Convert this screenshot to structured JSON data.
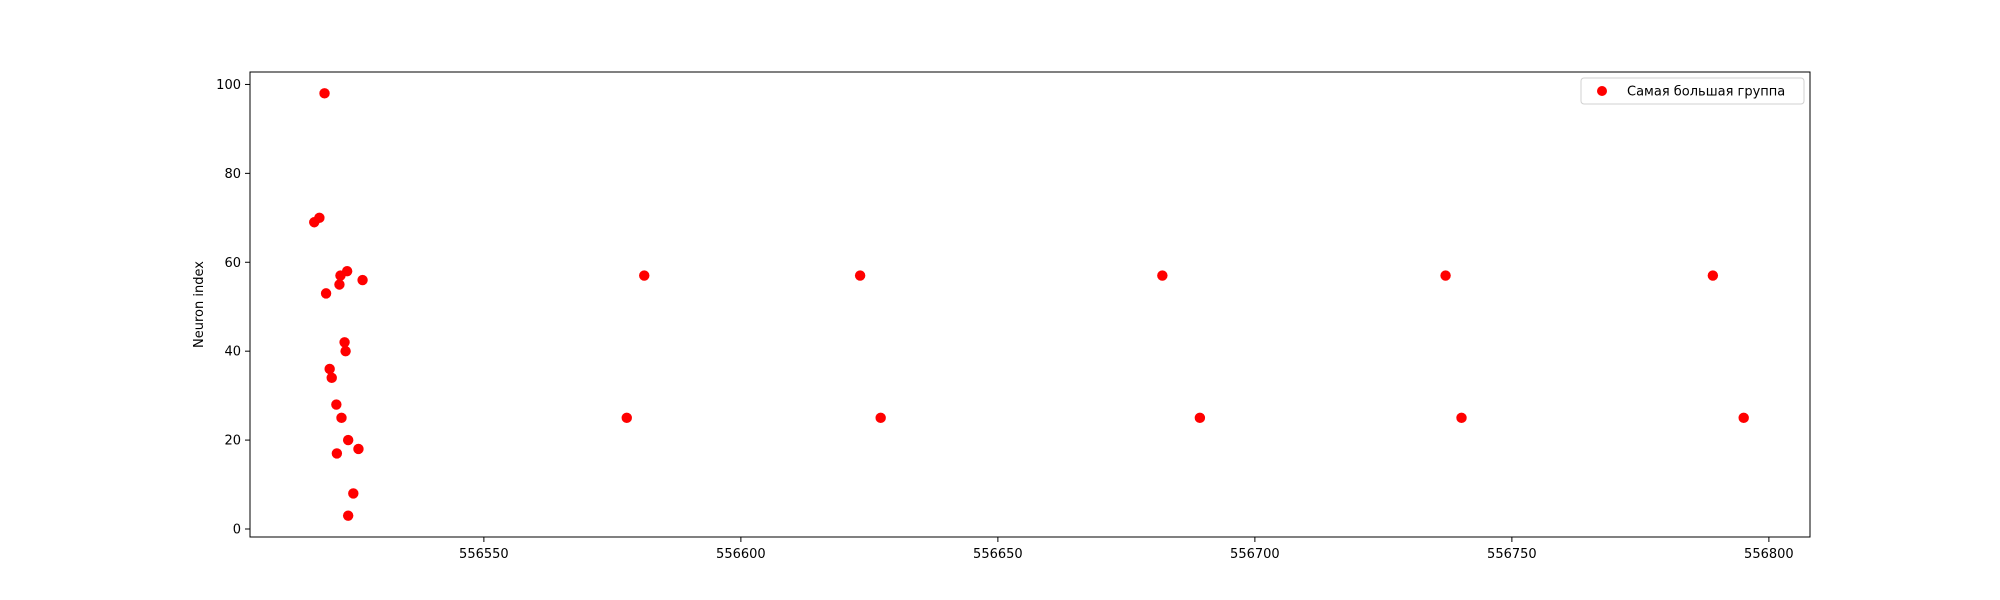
{
  "chart_data": {
    "type": "scatter",
    "title": "",
    "xlabel": "",
    "ylabel": "Neuron index",
    "xlim": [
      556504.5,
      556808
    ],
    "ylim": [
      -1.8,
      102.8
    ],
    "x_ticks": [
      556550,
      556600,
      556650,
      556700,
      556750,
      556800
    ],
    "x_tick_labels": [
      "556550",
      "556600",
      "556650",
      "556700",
      "556750",
      "556800"
    ],
    "y_ticks": [
      0,
      20,
      40,
      60,
      80,
      100
    ],
    "y_tick_labels": [
      "0",
      "20",
      "40",
      "60",
      "80",
      "100"
    ],
    "grid": false,
    "legend_position": "top-right",
    "series": [
      {
        "name": "Самая большая группа",
        "color": "#ff0000",
        "marker": "circle",
        "points": [
          {
            "x": 556519.0,
            "y": 98
          },
          {
            "x": 556517.0,
            "y": 69
          },
          {
            "x": 556518.0,
            "y": 70
          },
          {
            "x": 556519.3,
            "y": 53
          },
          {
            "x": 556522.1,
            "y": 57
          },
          {
            "x": 556523.4,
            "y": 58
          },
          {
            "x": 556521.9,
            "y": 55
          },
          {
            "x": 556526.4,
            "y": 56
          },
          {
            "x": 556522.9,
            "y": 42
          },
          {
            "x": 556523.1,
            "y": 40
          },
          {
            "x": 556520.0,
            "y": 36
          },
          {
            "x": 556520.4,
            "y": 34
          },
          {
            "x": 556521.3,
            "y": 28
          },
          {
            "x": 556522.3,
            "y": 25
          },
          {
            "x": 556523.6,
            "y": 20
          },
          {
            "x": 556521.4,
            "y": 17
          },
          {
            "x": 556525.6,
            "y": 18
          },
          {
            "x": 556524.6,
            "y": 8
          },
          {
            "x": 556523.6,
            "y": 3
          },
          {
            "x": 556581.2,
            "y": 57
          },
          {
            "x": 556577.8,
            "y": 25
          },
          {
            "x": 556623.2,
            "y": 57
          },
          {
            "x": 556627.2,
            "y": 25
          },
          {
            "x": 556682.0,
            "y": 57
          },
          {
            "x": 556689.3,
            "y": 25
          },
          {
            "x": 556737.1,
            "y": 57
          },
          {
            "x": 556740.2,
            "y": 25
          },
          {
            "x": 556789.1,
            "y": 57
          },
          {
            "x": 556795.1,
            "y": 25
          }
        ]
      }
    ]
  }
}
